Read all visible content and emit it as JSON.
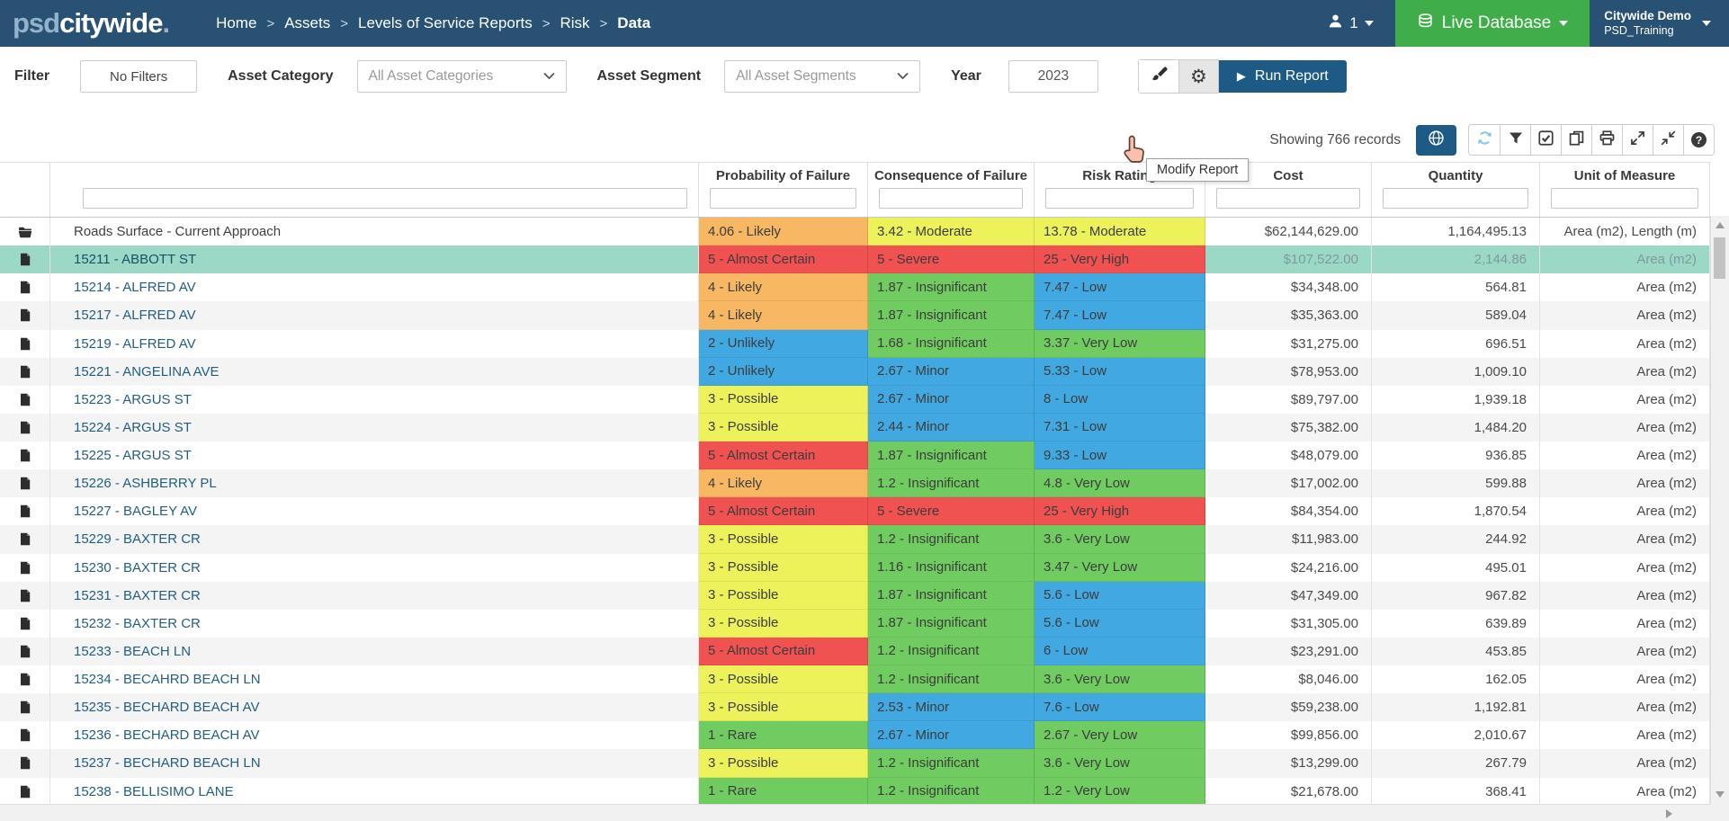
{
  "navbar": {
    "logo_prefix": "psd",
    "logo_main": "citywide",
    "logo_suffix": ".",
    "breadcrumbs": [
      "Home",
      "Assets",
      "Levels of Service Reports",
      "Risk",
      "Data"
    ],
    "user_count": "1",
    "live_db_label": "Live Database",
    "account_name": "Citywide Demo",
    "account_sub": "PSD_Training"
  },
  "filter_bar": {
    "filter_label": "Filter",
    "no_filters_label": "No Filters",
    "asset_category_label": "Asset Category",
    "asset_category_value": "All Asset Categories",
    "asset_segment_label": "Asset Segment",
    "asset_segment_value": "All Asset Segments",
    "year_label": "Year",
    "year_value": "2023",
    "run_report_label": "Run Report",
    "modify_tooltip": "Modify Report"
  },
  "toolbar": {
    "records_text": "Showing 766 records",
    "globe_icon": "globe-icon",
    "buttons": [
      "refresh",
      "filter",
      "check-square",
      "copy",
      "print",
      "expand",
      "compress",
      "help"
    ]
  },
  "table": {
    "columns": [
      "",
      "",
      "Probability of Failure",
      "Consequence of Failure",
      "Risk Rating",
      "Cost",
      "Quantity",
      "Unit of Measure"
    ],
    "risk_colors": {
      "red": "#f05151",
      "orange": "#f8b763",
      "yellow": "#edf25a",
      "green": "#70cc60",
      "blue": "#41a8e1",
      "selected_row": "#9cd8c6"
    },
    "rows": [
      {
        "icon": "folder",
        "type": "group",
        "name": "Roads Surface - Current Approach",
        "pof": {
          "text": "4.06 - Likely",
          "c": "orange"
        },
        "cof": {
          "text": "3.42 - Moderate",
          "c": "yellow"
        },
        "risk": {
          "text": "13.78 - Moderate",
          "c": "yellow"
        },
        "cost": "$62,144,629.00",
        "qty": "1,164,495.13",
        "uom": "Area (m2), Length (m)"
      },
      {
        "icon": "file",
        "type": "asset",
        "selected": true,
        "name": "15211 - ABBOTT ST",
        "pof": {
          "text": "5 - Almost Certain",
          "c": "red"
        },
        "cof": {
          "text": "5 - Severe",
          "c": "red"
        },
        "risk": {
          "text": "25 - Very High",
          "c": "red"
        },
        "cost": "$107,522.00",
        "qty": "2,144.86",
        "uom": "Area (m2)"
      },
      {
        "icon": "file",
        "type": "asset",
        "name": "15214 - ALFRED AV",
        "pof": {
          "text": "4 - Likely",
          "c": "orange"
        },
        "cof": {
          "text": "1.87 - Insignificant",
          "c": "green"
        },
        "risk": {
          "text": "7.47 - Low",
          "c": "blue"
        },
        "cost": "$34,348.00",
        "qty": "564.81",
        "uom": "Area (m2)"
      },
      {
        "icon": "file",
        "type": "asset",
        "name": "15217 - ALFRED AV",
        "pof": {
          "text": "4 - Likely",
          "c": "orange"
        },
        "cof": {
          "text": "1.87 - Insignificant",
          "c": "green"
        },
        "risk": {
          "text": "7.47 - Low",
          "c": "blue"
        },
        "cost": "$35,363.00",
        "qty": "589.04",
        "uom": "Area (m2)"
      },
      {
        "icon": "file",
        "type": "asset",
        "name": "15219 - ALFRED AV",
        "pof": {
          "text": "2 - Unlikely",
          "c": "blue"
        },
        "cof": {
          "text": "1.68 - Insignificant",
          "c": "green"
        },
        "risk": {
          "text": "3.37 - Very Low",
          "c": "green"
        },
        "cost": "$31,275.00",
        "qty": "696.51",
        "uom": "Area (m2)"
      },
      {
        "icon": "file",
        "type": "asset",
        "name": "15221 - ANGELINA AVE",
        "pof": {
          "text": "2 - Unlikely",
          "c": "blue"
        },
        "cof": {
          "text": "2.67 - Minor",
          "c": "blue"
        },
        "risk": {
          "text": "5.33 - Low",
          "c": "blue"
        },
        "cost": "$78,953.00",
        "qty": "1,009.10",
        "uom": "Area (m2)"
      },
      {
        "icon": "file",
        "type": "asset",
        "name": "15223 - ARGUS ST",
        "pof": {
          "text": "3 - Possible",
          "c": "yellow"
        },
        "cof": {
          "text": "2.67 - Minor",
          "c": "blue"
        },
        "risk": {
          "text": "8 - Low",
          "c": "blue"
        },
        "cost": "$89,797.00",
        "qty": "1,939.18",
        "uom": "Area (m2)"
      },
      {
        "icon": "file",
        "type": "asset",
        "name": "15224 - ARGUS ST",
        "pof": {
          "text": "3 - Possible",
          "c": "yellow"
        },
        "cof": {
          "text": "2.44 - Minor",
          "c": "blue"
        },
        "risk": {
          "text": "7.31 - Low",
          "c": "blue"
        },
        "cost": "$75,382.00",
        "qty": "1,484.20",
        "uom": "Area (m2)"
      },
      {
        "icon": "file",
        "type": "asset",
        "name": "15225 - ARGUS ST",
        "pof": {
          "text": "5 - Almost Certain",
          "c": "red"
        },
        "cof": {
          "text": "1.87 - Insignificant",
          "c": "green"
        },
        "risk": {
          "text": "9.33 - Low",
          "c": "blue"
        },
        "cost": "$48,079.00",
        "qty": "936.85",
        "uom": "Area (m2)"
      },
      {
        "icon": "file",
        "type": "asset",
        "name": "15226 - ASHBERRY PL",
        "pof": {
          "text": "4 - Likely",
          "c": "orange"
        },
        "cof": {
          "text": "1.2 - Insignificant",
          "c": "green"
        },
        "risk": {
          "text": "4.8 - Very Low",
          "c": "green"
        },
        "cost": "$17,002.00",
        "qty": "599.88",
        "uom": "Area (m2)"
      },
      {
        "icon": "file",
        "type": "asset",
        "name": "15227 - BAGLEY AV",
        "pof": {
          "text": "5 - Almost Certain",
          "c": "red"
        },
        "cof": {
          "text": "5 - Severe",
          "c": "red"
        },
        "risk": {
          "text": "25 - Very High",
          "c": "red"
        },
        "cost": "$84,354.00",
        "qty": "1,870.54",
        "uom": "Area (m2)"
      },
      {
        "icon": "file",
        "type": "asset",
        "name": "15229 - BAXTER CR",
        "pof": {
          "text": "3 - Possible",
          "c": "yellow"
        },
        "cof": {
          "text": "1.2 - Insignificant",
          "c": "green"
        },
        "risk": {
          "text": "3.6 - Very Low",
          "c": "green"
        },
        "cost": "$11,983.00",
        "qty": "244.92",
        "uom": "Area (m2)"
      },
      {
        "icon": "file",
        "type": "asset",
        "name": "15230 - BAXTER CR",
        "pof": {
          "text": "3 - Possible",
          "c": "yellow"
        },
        "cof": {
          "text": "1.16 - Insignificant",
          "c": "green"
        },
        "risk": {
          "text": "3.47 - Very Low",
          "c": "green"
        },
        "cost": "$24,216.00",
        "qty": "495.01",
        "uom": "Area (m2)"
      },
      {
        "icon": "file",
        "type": "asset",
        "name": "15231 - BAXTER CR",
        "pof": {
          "text": "3 - Possible",
          "c": "yellow"
        },
        "cof": {
          "text": "1.87 - Insignificant",
          "c": "green"
        },
        "risk": {
          "text": "5.6 - Low",
          "c": "blue"
        },
        "cost": "$47,349.00",
        "qty": "967.82",
        "uom": "Area (m2)"
      },
      {
        "icon": "file",
        "type": "asset",
        "name": "15232 - BAXTER CR",
        "pof": {
          "text": "3 - Possible",
          "c": "yellow"
        },
        "cof": {
          "text": "1.87 - Insignificant",
          "c": "green"
        },
        "risk": {
          "text": "5.6 - Low",
          "c": "blue"
        },
        "cost": "$31,305.00",
        "qty": "639.89",
        "uom": "Area (m2)"
      },
      {
        "icon": "file",
        "type": "asset",
        "name": "15233 - BEACH LN",
        "pof": {
          "text": "5 - Almost Certain",
          "c": "red"
        },
        "cof": {
          "text": "1.2 - Insignificant",
          "c": "green"
        },
        "risk": {
          "text": "6 - Low",
          "c": "blue"
        },
        "cost": "$23,291.00",
        "qty": "453.85",
        "uom": "Area (m2)"
      },
      {
        "icon": "file",
        "type": "asset",
        "name": "15234 - BECAHRD BEACH LN",
        "pof": {
          "text": "3 - Possible",
          "c": "yellow"
        },
        "cof": {
          "text": "1.2 - Insignificant",
          "c": "green"
        },
        "risk": {
          "text": "3.6 - Very Low",
          "c": "green"
        },
        "cost": "$8,046.00",
        "qty": "162.05",
        "uom": "Area (m2)"
      },
      {
        "icon": "file",
        "type": "asset",
        "name": "15235 - BECHARD BEACH AV",
        "pof": {
          "text": "3 - Possible",
          "c": "yellow"
        },
        "cof": {
          "text": "2.53 - Minor",
          "c": "blue"
        },
        "risk": {
          "text": "7.6 - Low",
          "c": "blue"
        },
        "cost": "$59,238.00",
        "qty": "1,192.81",
        "uom": "Area (m2)"
      },
      {
        "icon": "file",
        "type": "asset",
        "name": "15236 - BECHARD BEACH AV",
        "pof": {
          "text": "1 - Rare",
          "c": "green"
        },
        "cof": {
          "text": "2.67 - Minor",
          "c": "blue"
        },
        "risk": {
          "text": "2.67 - Very Low",
          "c": "green"
        },
        "cost": "$99,856.00",
        "qty": "2,010.67",
        "uom": "Area (m2)"
      },
      {
        "icon": "file",
        "type": "asset",
        "name": "15237 - BECHARD BEACH LN",
        "pof": {
          "text": "3 - Possible",
          "c": "yellow"
        },
        "cof": {
          "text": "1.2 - Insignificant",
          "c": "green"
        },
        "risk": {
          "text": "3.6 - Very Low",
          "c": "green"
        },
        "cost": "$13,299.00",
        "qty": "267.79",
        "uom": "Area (m2)"
      },
      {
        "icon": "file",
        "type": "asset",
        "name": "15238 - BELLISIMO LANE",
        "pof": {
          "text": "1 - Rare",
          "c": "green"
        },
        "cof": {
          "text": "1.2 - Insignificant",
          "c": "green"
        },
        "risk": {
          "text": "1.2 - Very Low",
          "c": "green"
        },
        "cost": "$21,678.00",
        "qty": "368.41",
        "uom": "Area (m2)"
      }
    ]
  }
}
